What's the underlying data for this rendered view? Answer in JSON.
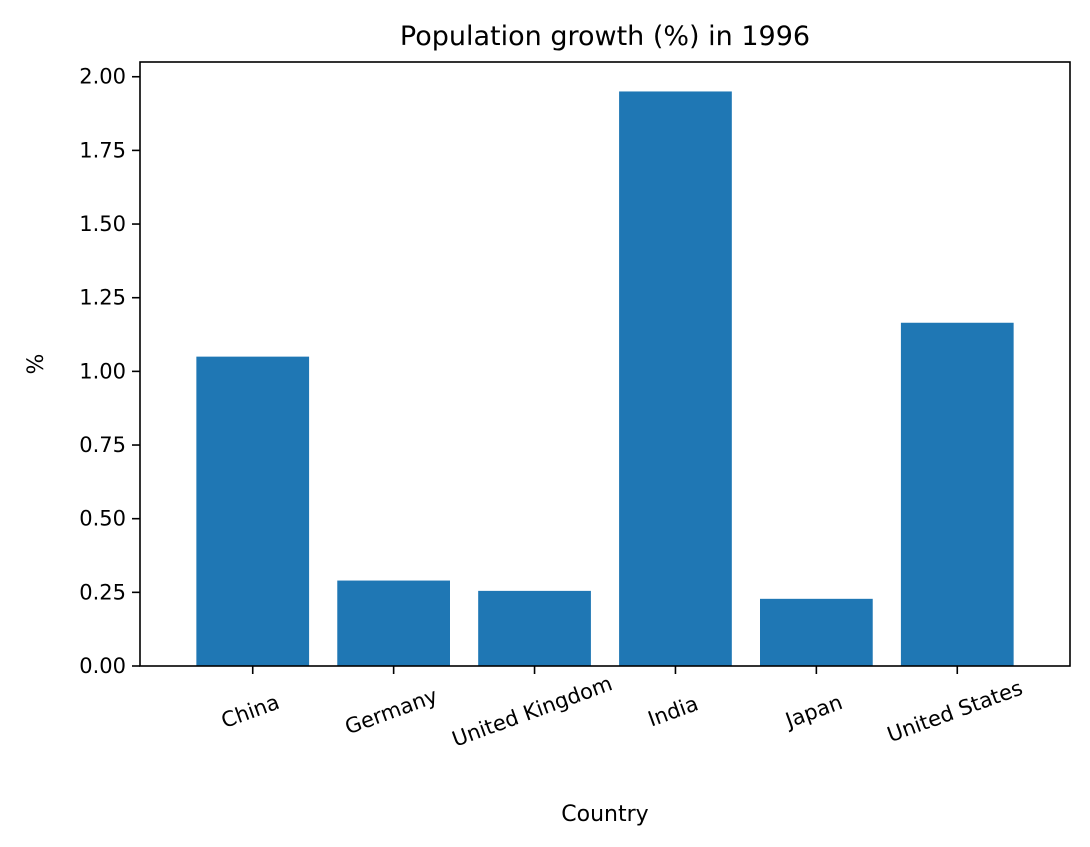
{
  "chart_data": {
    "type": "bar",
    "title": "Population growth (%) in 1996",
    "xlabel": "Country",
    "ylabel": "%",
    "categories": [
      "China",
      "Germany",
      "United Kingdom",
      "India",
      "Japan",
      "United States"
    ],
    "values": [
      1.05,
      0.29,
      0.255,
      1.95,
      0.228,
      1.165
    ],
    "ylim": [
      0,
      2.05
    ],
    "yticks": [
      "0.00",
      "0.25",
      "0.50",
      "0.75",
      "1.00",
      "1.25",
      "1.50",
      "1.75",
      "2.00"
    ],
    "grid": false,
    "bar_color": "#1f77b4"
  }
}
